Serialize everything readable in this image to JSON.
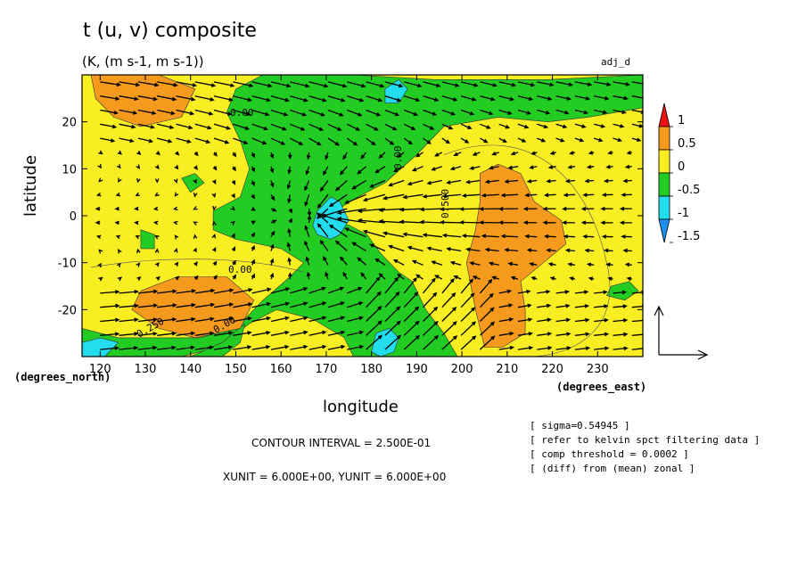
{
  "header": {
    "title": "t (u, v) composite",
    "subtitle": "(K, (m s-1, m s-1))",
    "corner_label": "adj_d"
  },
  "axes": {
    "ylabel": "latitude",
    "xlabel": "longitude",
    "y_unit_note": "(degrees_north)",
    "x_unit_note": "(degrees_east)"
  },
  "info": {
    "contour_interval": "CONTOUR INTERVAL = 2.500E-01",
    "units": "XUNIT = 6.000E+00, YUNIT = 6.000E+00"
  },
  "notes": [
    "[ sigma=0.54945 ]",
    "[ refer to kelvin spct filtering data ]",
    "[ comp threshold = 0.0002 ]",
    "[ (diff) from (mean) zonal ]"
  ],
  "colors": {
    "red": "#ee1111",
    "orange": "#f59a1c",
    "yellow": "#f8ee22",
    "green": "#22cc22",
    "cyan": "#22ddee",
    "blue": "#1c8ff0"
  },
  "chart_data": {
    "type": "heatmap",
    "subtype": "filled contour with wind vectors",
    "x_ticks": [
      "120",
      "130",
      "140",
      "150",
      "160",
      "170",
      "180",
      "190",
      "200",
      "210",
      "220",
      "230"
    ],
    "y_ticks": [
      "20",
      "10",
      "0",
      "-10",
      "-20"
    ],
    "xlim": [
      116,
      240
    ],
    "ylim": [
      -30,
      30
    ],
    "colorbar": {
      "levels": [
        "1",
        "0.5",
        "0",
        "-0.5",
        "-1",
        "-1.5"
      ],
      "colors": [
        "#ee1111",
        "#f59a1c",
        "#f8ee22",
        "#22cc22",
        "#22ddee",
        "#1c8ff0"
      ]
    },
    "contour_labels": [
      "0.00",
      "0.00",
      "0.00",
      "0.500",
      "0.00",
      "0.250"
    ],
    "regions": [
      {
        "level": "orange",
        "points": [
          [
            118,
            30
          ],
          [
            133,
            30
          ],
          [
            141,
            27
          ],
          [
            138,
            21
          ],
          [
            129,
            19
          ],
          [
            123,
            21
          ],
          [
            119,
            25
          ]
        ]
      },
      {
        "level": "orange",
        "points": [
          [
            129,
            -16
          ],
          [
            137,
            -13
          ],
          [
            148,
            -13
          ],
          [
            154,
            -18
          ],
          [
            151,
            -24
          ],
          [
            141,
            -26
          ],
          [
            133,
            -24
          ],
          [
            127,
            -20
          ]
        ]
      },
      {
        "level": "orange",
        "points": [
          [
            204,
            3
          ],
          [
            204,
            9
          ],
          [
            208,
            11
          ],
          [
            213,
            9
          ],
          [
            216,
            3
          ],
          [
            222,
            -1
          ],
          [
            223,
            -6
          ],
          [
            218,
            -10
          ],
          [
            213,
            -14
          ],
          [
            214,
            -20
          ],
          [
            214,
            -25
          ],
          [
            209,
            -28
          ],
          [
            205,
            -28
          ],
          [
            203,
            -20
          ],
          [
            201,
            -10
          ],
          [
            203,
            -3
          ]
        ]
      },
      {
        "level": "green",
        "points": [
          [
            156,
            30
          ],
          [
            176,
            30
          ],
          [
            194,
            29
          ],
          [
            219,
            29
          ],
          [
            240,
            30
          ],
          [
            240,
            23
          ],
          [
            228,
            21
          ],
          [
            219,
            20
          ],
          [
            208,
            21
          ],
          [
            196,
            19
          ],
          [
            190,
            13
          ],
          [
            183,
            7
          ],
          [
            177,
            4
          ],
          [
            172,
            1
          ],
          [
            170,
            -1
          ],
          [
            175,
            -2
          ],
          [
            179,
            -4
          ],
          [
            182,
            -8
          ],
          [
            186,
            -12
          ],
          [
            189,
            -14
          ],
          [
            192,
            -20
          ],
          [
            196,
            -25
          ],
          [
            199,
            -30
          ],
          [
            176,
            -30
          ],
          [
            174,
            -26
          ],
          [
            167,
            -22
          ],
          [
            159,
            -20
          ],
          [
            153,
            -23
          ],
          [
            146,
            -28
          ],
          [
            138,
            -30
          ],
          [
            116,
            -30
          ],
          [
            116,
            -24
          ],
          [
            124,
            -26
          ],
          [
            130,
            -26
          ],
          [
            142,
            -26
          ],
          [
            150,
            -24
          ],
          [
            156,
            -18
          ],
          [
            162,
            -13
          ],
          [
            165,
            -10
          ],
          [
            160,
            -7
          ],
          [
            150,
            -5
          ],
          [
            145,
            -3
          ],
          [
            145,
            1
          ],
          [
            151,
            4
          ],
          [
            153,
            10
          ],
          [
            151,
            16
          ],
          [
            148,
            22
          ],
          [
            150,
            27
          ]
        ]
      },
      {
        "level": "green",
        "points": [
          [
            140,
            -30
          ],
          [
            147,
            -27
          ],
          [
            152,
            -23
          ],
          [
            151,
            -27
          ],
          [
            147,
            -30
          ]
        ]
      },
      {
        "level": "green",
        "points": [
          [
            140,
            5
          ],
          [
            143,
            7
          ],
          [
            141,
            9
          ],
          [
            138,
            8
          ]
        ]
      },
      {
        "level": "green",
        "points": [
          [
            129,
            -3
          ],
          [
            132,
            -4
          ],
          [
            132,
            -7
          ],
          [
            129,
            -7
          ]
        ]
      },
      {
        "level": "green",
        "points": [
          [
            233,
            -15
          ],
          [
            237,
            -14
          ],
          [
            239,
            -16
          ],
          [
            236,
            -18
          ],
          [
            232,
            -17
          ]
        ]
      },
      {
        "level": "cyan",
        "points": [
          [
            183,
            27
          ],
          [
            186,
            29
          ],
          [
            188,
            27
          ],
          [
            186,
            24
          ],
          [
            183,
            24
          ]
        ]
      },
      {
        "level": "cyan",
        "points": [
          [
            168,
            1
          ],
          [
            171,
            4
          ],
          [
            173,
            3
          ],
          [
            175,
            -1
          ],
          [
            173,
            -4
          ],
          [
            171,
            -5
          ],
          [
            168,
            -4
          ],
          [
            167,
            -2
          ]
        ]
      },
      {
        "level": "cyan",
        "points": [
          [
            181,
            -25
          ],
          [
            184,
            -24
          ],
          [
            186,
            -26
          ],
          [
            185,
            -29
          ],
          [
            182,
            -30
          ],
          [
            180,
            -29
          ]
        ]
      },
      {
        "level": "cyan",
        "points": [
          [
            116,
            -27
          ],
          [
            120,
            -26
          ],
          [
            124,
            -27
          ],
          [
            121,
            -30
          ],
          [
            116,
            -30
          ]
        ]
      }
    ],
    "vector_reference": {
      "u": 6,
      "v": 6
    }
  }
}
